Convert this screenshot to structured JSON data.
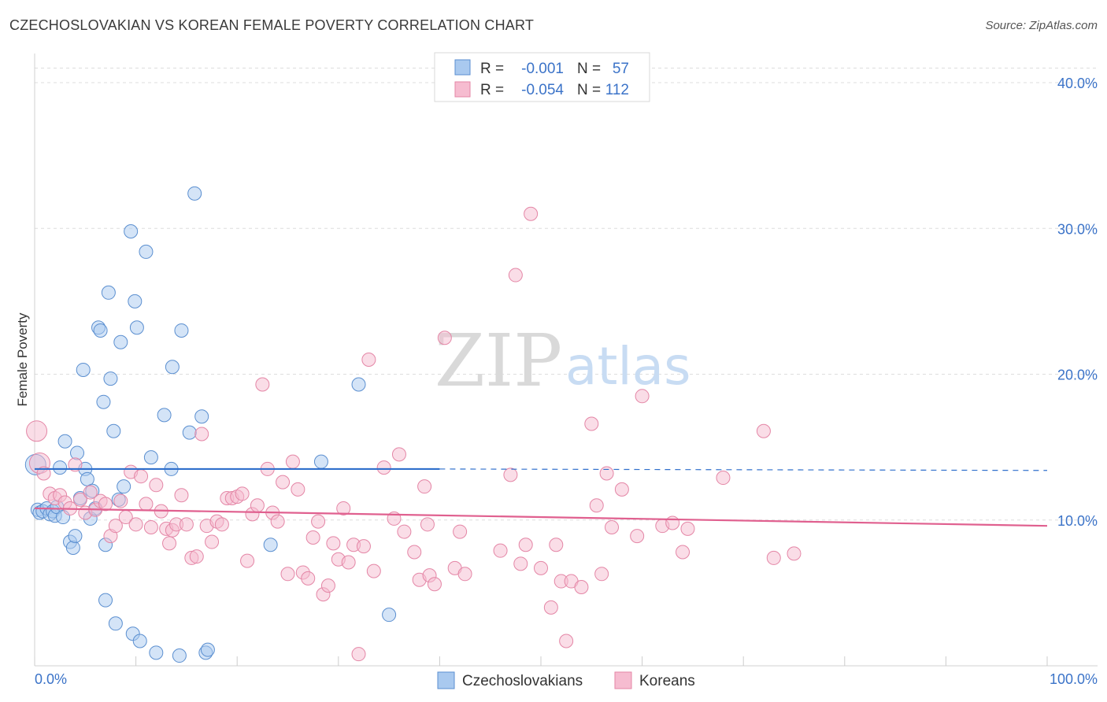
{
  "title": "CZECHOSLOVAKIAN VS KOREAN FEMALE POVERTY CORRELATION CHART",
  "source": "Source: ZipAtlas.com",
  "watermark": {
    "zip": "ZIP",
    "atlas": "atlas"
  },
  "colors": {
    "czech_fill": "#a9c9ef",
    "czech_stroke": "#5b8fd0",
    "czech_line": "#2f6fcc",
    "korean_fill": "#f6bcd0",
    "korean_stroke": "#e486a6",
    "korean_line": "#e0608f",
    "axis_text": "#3b73c8",
    "grid": "#dddddd"
  },
  "legend_top": [
    {
      "series": "Czechoslovakians",
      "r_label": "R =",
      "r_value": "-0.001",
      "n_label": "N =",
      "n_value": "57"
    },
    {
      "series": "Koreans",
      "r_label": "R =",
      "r_value": "-0.054",
      "n_label": "N =",
      "n_value": "112"
    }
  ],
  "chart_data": {
    "type": "scatter",
    "title": "CZECHOSLOVAKIAN VS KOREAN FEMALE POVERTY CORRELATION CHART",
    "xlabel": "",
    "ylabel": "Female Poverty",
    "xlim": [
      0,
      100
    ],
    "ylim": [
      0,
      42
    ],
    "x_tick_labels": [
      "0.0%",
      "100.0%"
    ],
    "y_ticks": [
      10,
      20,
      30,
      40
    ],
    "y_tick_labels": [
      "10.0%",
      "20.0%",
      "30.0%",
      "40.0%"
    ],
    "legend": [
      "Czechoslovakians",
      "Koreans"
    ],
    "series": [
      {
        "name": "Czechoslovakians",
        "trend": {
          "x0": 0,
          "y0": 13.5,
          "x1": 40,
          "y1": 13.5,
          "dash_to_x": 100,
          "dash_y": 13.4
        },
        "points": [
          [
            0.3,
            10.7
          ],
          [
            0.5,
            10.5
          ],
          [
            0.8,
            10.6
          ],
          [
            1.2,
            10.8
          ],
          [
            1.5,
            10.4
          ],
          [
            1.8,
            10.6
          ],
          [
            2.0,
            10.3
          ],
          [
            2.2,
            10.9
          ],
          [
            2.5,
            13.6
          ],
          [
            2.8,
            10.2
          ],
          [
            3.0,
            15.4
          ],
          [
            3.5,
            8.5
          ],
          [
            3.8,
            8.1
          ],
          [
            4.0,
            8.9
          ],
          [
            4.2,
            14.6
          ],
          [
            4.5,
            11.5
          ],
          [
            4.8,
            20.3
          ],
          [
            5.0,
            13.5
          ],
          [
            5.2,
            12.8
          ],
          [
            5.5,
            10.1
          ],
          [
            5.7,
            12.0
          ],
          [
            6.0,
            10.8
          ],
          [
            6.3,
            23.2
          ],
          [
            6.5,
            23.0
          ],
          [
            6.8,
            18.1
          ],
          [
            7.0,
            8.3
          ],
          [
            7.0,
            4.5
          ],
          [
            7.3,
            25.6
          ],
          [
            7.5,
            19.7
          ],
          [
            7.8,
            16.1
          ],
          [
            8.0,
            2.9
          ],
          [
            8.3,
            11.4
          ],
          [
            8.5,
            22.2
          ],
          [
            8.8,
            12.3
          ],
          [
            9.5,
            29.8
          ],
          [
            9.7,
            2.2
          ],
          [
            9.9,
            25.0
          ],
          [
            10.1,
            23.2
          ],
          [
            10.4,
            1.7
          ],
          [
            11.0,
            28.4
          ],
          [
            11.5,
            14.3
          ],
          [
            12.0,
            0.9
          ],
          [
            12.8,
            17.2
          ],
          [
            13.5,
            13.5
          ],
          [
            13.6,
            20.5
          ],
          [
            14.3,
            0.7
          ],
          [
            14.5,
            23.0
          ],
          [
            15.3,
            16.0
          ],
          [
            15.8,
            32.4
          ],
          [
            16.5,
            17.1
          ],
          [
            16.9,
            0.9
          ],
          [
            17.1,
            1.1
          ],
          [
            23.3,
            8.3
          ],
          [
            28.3,
            14.0
          ],
          [
            32.0,
            19.3
          ],
          [
            35.0,
            3.5
          ],
          [
            0.1,
            13.8
          ]
        ]
      },
      {
        "name": "Koreans",
        "trend": {
          "x0": 0,
          "y0": 10.8,
          "x1": 100,
          "y1": 9.6
        },
        "points": [
          [
            0.2,
            16.1
          ],
          [
            0.5,
            13.9
          ],
          [
            0.9,
            13.2
          ],
          [
            1.5,
            11.8
          ],
          [
            2.0,
            11.5
          ],
          [
            2.5,
            11.7
          ],
          [
            3.0,
            11.2
          ],
          [
            3.5,
            10.8
          ],
          [
            4.0,
            13.8
          ],
          [
            4.5,
            11.4
          ],
          [
            5.0,
            10.5
          ],
          [
            5.5,
            11.9
          ],
          [
            6.0,
            10.7
          ],
          [
            6.5,
            11.3
          ],
          [
            7.0,
            11.1
          ],
          [
            7.5,
            8.9
          ],
          [
            8.0,
            9.6
          ],
          [
            8.5,
            11.3
          ],
          [
            9.0,
            10.2
          ],
          [
            9.5,
            13.3
          ],
          [
            10.0,
            9.7
          ],
          [
            10.5,
            13.0
          ],
          [
            11.0,
            11.1
          ],
          [
            11.5,
            9.5
          ],
          [
            12.0,
            12.4
          ],
          [
            12.5,
            10.6
          ],
          [
            13.0,
            9.4
          ],
          [
            13.3,
            8.4
          ],
          [
            13.6,
            9.3
          ],
          [
            14.0,
            9.7
          ],
          [
            14.5,
            11.7
          ],
          [
            15.0,
            9.7
          ],
          [
            15.5,
            7.4
          ],
          [
            16.0,
            7.5
          ],
          [
            16.5,
            15.9
          ],
          [
            17.0,
            9.6
          ],
          [
            17.5,
            8.5
          ],
          [
            18.0,
            9.9
          ],
          [
            18.5,
            9.7
          ],
          [
            19.0,
            11.5
          ],
          [
            19.5,
            11.5
          ],
          [
            20.0,
            11.6
          ],
          [
            20.5,
            11.8
          ],
          [
            21.0,
            7.2
          ],
          [
            21.5,
            10.4
          ],
          [
            22.0,
            11.0
          ],
          [
            22.5,
            19.3
          ],
          [
            23.0,
            13.5
          ],
          [
            23.5,
            10.5
          ],
          [
            24.0,
            9.9
          ],
          [
            24.5,
            12.6
          ],
          [
            25.0,
            6.3
          ],
          [
            25.5,
            14.0
          ],
          [
            26.0,
            12.1
          ],
          [
            26.5,
            6.4
          ],
          [
            27.0,
            6.0
          ],
          [
            27.5,
            8.8
          ],
          [
            28.0,
            9.9
          ],
          [
            28.5,
            4.9
          ],
          [
            29.0,
            5.5
          ],
          [
            29.5,
            8.4
          ],
          [
            30.0,
            7.3
          ],
          [
            30.5,
            10.8
          ],
          [
            31.0,
            7.1
          ],
          [
            31.5,
            8.3
          ],
          [
            32.0,
            0.8
          ],
          [
            32.5,
            8.2
          ],
          [
            33.0,
            21.0
          ],
          [
            33.5,
            6.5
          ],
          [
            34.5,
            13.6
          ],
          [
            35.5,
            10.1
          ],
          [
            36.0,
            14.5
          ],
          [
            36.5,
            9.2
          ],
          [
            37.5,
            7.8
          ],
          [
            38.0,
            5.9
          ],
          [
            38.5,
            12.3
          ],
          [
            38.8,
            9.7
          ],
          [
            39.0,
            6.2
          ],
          [
            39.5,
            5.6
          ],
          [
            40.5,
            22.5
          ],
          [
            41.5,
            6.7
          ],
          [
            42.0,
            9.2
          ],
          [
            42.5,
            6.3
          ],
          [
            46.0,
            7.9
          ],
          [
            47.0,
            13.1
          ],
          [
            47.5,
            26.8
          ],
          [
            48.0,
            7.0
          ],
          [
            48.5,
            8.3
          ],
          [
            49.0,
            31.0
          ],
          [
            50.0,
            6.7
          ],
          [
            51.0,
            4.0
          ],
          [
            51.5,
            8.3
          ],
          [
            52.0,
            5.8
          ],
          [
            52.5,
            1.7
          ],
          [
            53.0,
            5.8
          ],
          [
            54.0,
            5.4
          ],
          [
            55.0,
            16.6
          ],
          [
            55.5,
            11.0
          ],
          [
            56.0,
            6.3
          ],
          [
            56.5,
            13.2
          ],
          [
            57.0,
            9.5
          ],
          [
            58.0,
            12.1
          ],
          [
            59.5,
            8.9
          ],
          [
            60.0,
            18.5
          ],
          [
            62.0,
            9.6
          ],
          [
            63.0,
            9.8
          ],
          [
            64.0,
            7.8
          ],
          [
            64.5,
            9.4
          ],
          [
            68.0,
            12.9
          ],
          [
            72.0,
            16.1
          ],
          [
            73.0,
            7.4
          ],
          [
            75.0,
            7.7
          ]
        ]
      }
    ]
  }
}
